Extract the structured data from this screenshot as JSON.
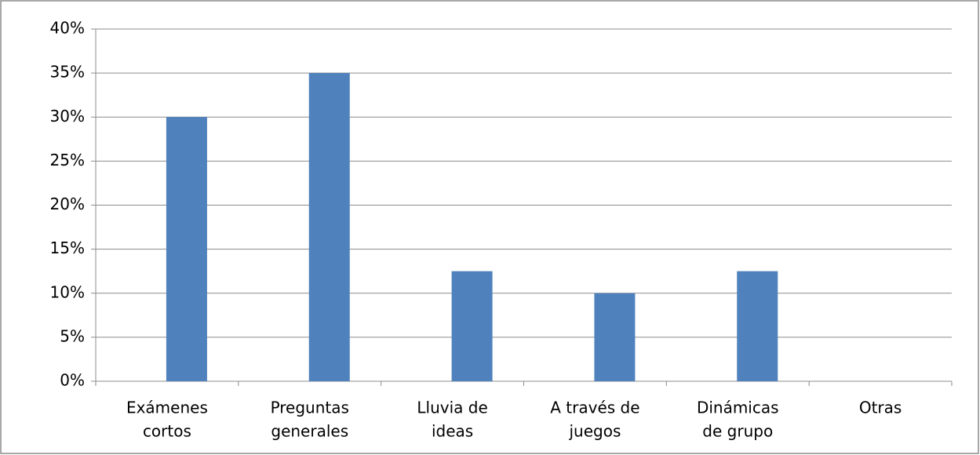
{
  "chart_data": {
    "type": "bar",
    "categories": [
      [
        "Exámenes",
        "cortos"
      ],
      [
        "Preguntas",
        "generales"
      ],
      [
        "Lluvia de",
        "ideas"
      ],
      [
        "A través de",
        "juegos"
      ],
      [
        "Dinámicas",
        "de grupo"
      ],
      [
        "Otras"
      ]
    ],
    "values": [
      30,
      35,
      12.5,
      10,
      12.5,
      0
    ],
    "color": "#4f81bd",
    "ylim": [
      0,
      40
    ],
    "yticks": [
      {
        "value": 0,
        "label": "0%"
      },
      {
        "value": 5,
        "label": "5%"
      },
      {
        "value": 10,
        "label": "10%"
      },
      {
        "value": 15,
        "label": "15%"
      },
      {
        "value": 20,
        "label": "20%"
      },
      {
        "value": 25,
        "label": "25%"
      },
      {
        "value": 30,
        "label": "30%"
      },
      {
        "value": 35,
        "label": "35%"
      },
      {
        "value": 40,
        "label": "40%"
      }
    ],
    "grid": true
  }
}
